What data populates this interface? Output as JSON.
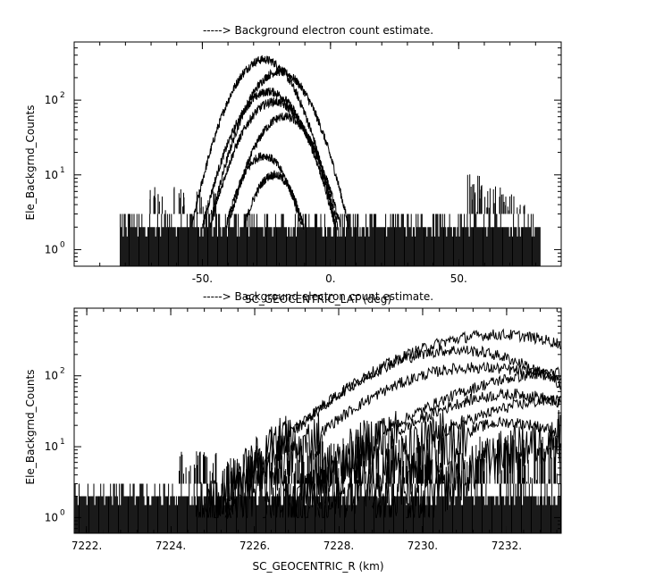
{
  "chart_data": [
    {
      "type": "line",
      "title": "-----> Background electron count estimate.",
      "xlabel": "SC_GEOCENTRIC_LAT (deg)",
      "ylabel": "Ele_Backgrnd_Counts",
      "xlim": [
        -100,
        90
      ],
      "ylim": [
        0.6,
        600
      ],
      "yscale": "log",
      "grid": false,
      "xticks": [
        -50,
        0,
        50
      ],
      "xtick_labels": [
        "-50.",
        "0.",
        "50."
      ],
      "yticks": [
        1,
        10,
        100
      ],
      "ytick_labels": [
        "10",
        "10",
        "10"
      ],
      "ytick_exponents": [
        "0",
        "1",
        "2"
      ],
      "baseline_range": [
        -82,
        82
      ],
      "series": [
        {
          "center": -26,
          "peak": 350,
          "half_width": 30
        },
        {
          "center": -20,
          "peak": 240,
          "half_width": 29
        },
        {
          "center": -24,
          "peak": 130,
          "half_width": 28
        },
        {
          "center": -22,
          "peak": 95,
          "half_width": 27
        },
        {
          "center": -18,
          "peak": 60,
          "half_width": 24
        },
        {
          "center": -26,
          "peak": 18,
          "half_width": 17
        },
        {
          "center": -22,
          "peak": 10,
          "half_width": 14
        }
      ],
      "spikes": [
        {
          "x": -70,
          "y": 7
        },
        {
          "x": -66,
          "y": 6
        },
        {
          "x": -60,
          "y": 12
        },
        {
          "x": -58,
          "y": 6
        },
        {
          "x": -52,
          "y": 7
        },
        {
          "x": -48,
          "y": 5
        },
        {
          "x": -45,
          "y": 6
        },
        {
          "x": 55,
          "y": 12
        },
        {
          "x": 57,
          "y": 11
        },
        {
          "x": 60,
          "y": 8
        },
        {
          "x": 63,
          "y": 7
        },
        {
          "x": 67,
          "y": 9
        },
        {
          "x": 70,
          "y": 6
        },
        {
          "x": 74,
          "y": 4
        }
      ]
    },
    {
      "type": "line",
      "title": "-----> Background electron count estimate.",
      "xlabel": "SC_GEOCENTRIC_R (km)",
      "ylabel": "Ele_Backgrnd_Counts",
      "xlim": [
        7221.7,
        7233.3
      ],
      "ylim": [
        0.6,
        900
      ],
      "yscale": "log",
      "grid": false,
      "xticks": [
        7222,
        7224,
        7226,
        7228,
        7230,
        7232
      ],
      "xtick_labels": [
        "7222.",
        "7224.",
        "7226.",
        "7228.",
        "7230.",
        "7232."
      ],
      "yticks": [
        1,
        10,
        100
      ],
      "ytick_labels": [
        "10",
        "10",
        "10"
      ],
      "ytick_exponents": [
        "0",
        "1",
        "2"
      ],
      "series": [
        {
          "start": 7224.6,
          "peak_x": 7231.8,
          "peak": 380,
          "end_y": 280
        },
        {
          "start": 7224.9,
          "peak_x": 7230.8,
          "peak": 230,
          "end_y": 75
        },
        {
          "start": 7225.3,
          "peak_x": 7231.2,
          "peak": 130,
          "end_y": 90
        },
        {
          "start": 7226.2,
          "peak_x": 7233.3,
          "peak": 110,
          "end_y": 110
        },
        {
          "start": 7226.8,
          "peak_x": 7232.2,
          "peak": 55,
          "end_y": 40
        },
        {
          "start": 7227.5,
          "peak_x": 7233.3,
          "peak": 45,
          "end_y": 45
        },
        {
          "start": 7228.8,
          "peak_x": 7232.0,
          "peak": 22,
          "end_y": 15
        },
        {
          "start": 7229.6,
          "peak_x": 7233.3,
          "peak": 12,
          "end_y": 12
        }
      ]
    }
  ]
}
